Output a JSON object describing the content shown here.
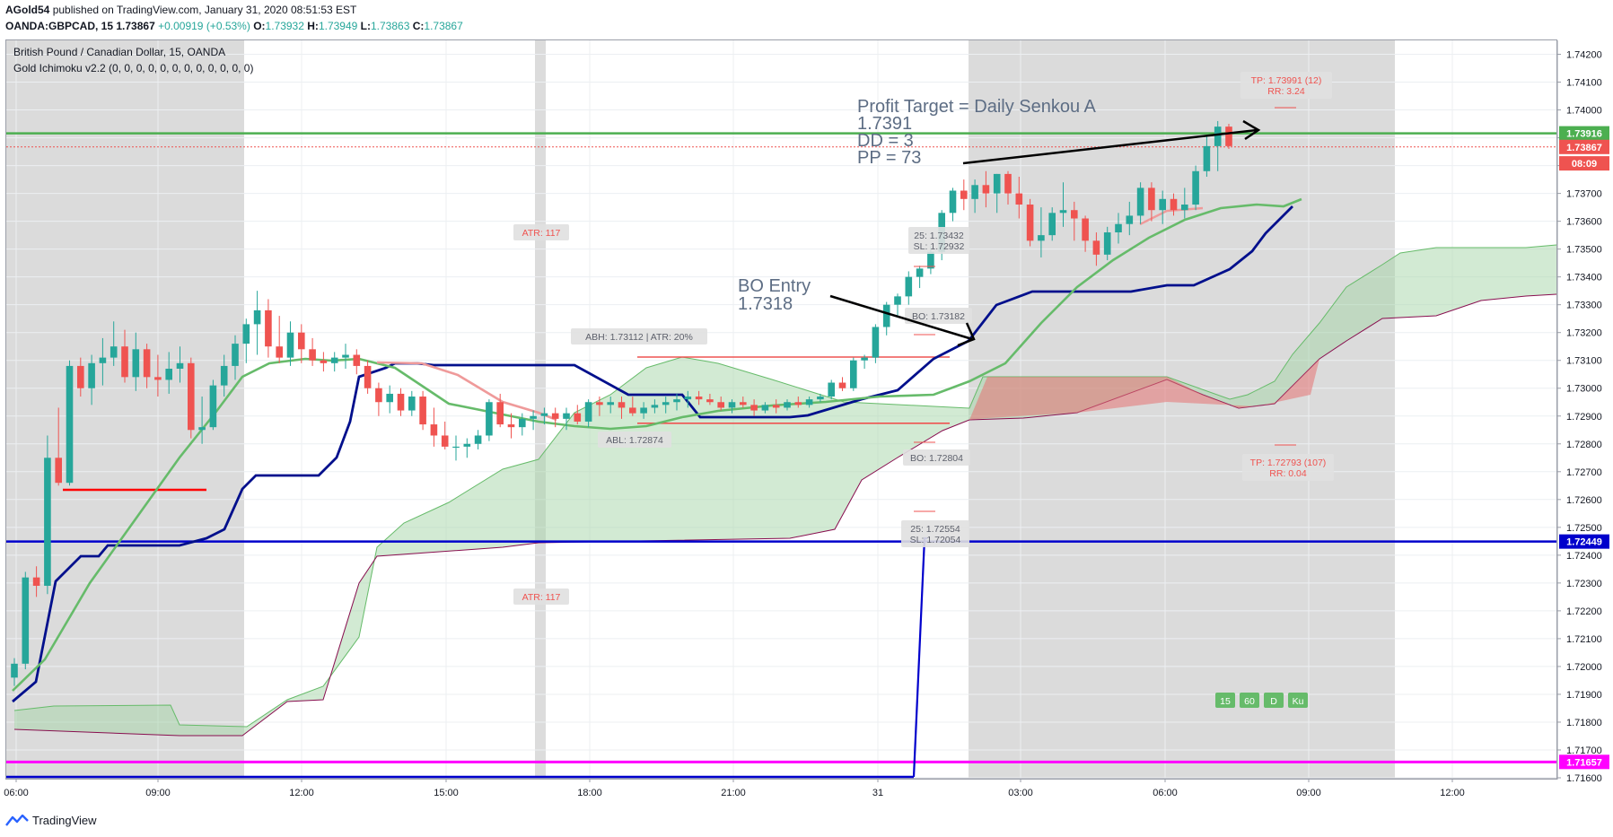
{
  "header": {
    "author": "AGold54",
    "publish_text": "published on TradingView.com, January 31, 2020 08:51:53 EST",
    "symbol": "OANDA:GBPCAD, 15",
    "price": "1.73867",
    "change": "+0.00919 (+0.53%)",
    "o_label": "O:",
    "o": "1.73932",
    "h_label": "H:",
    "h": "1.73949",
    "l_label": "L:",
    "l": "1.73863",
    "c_label": "C:",
    "c": "1.73867"
  },
  "legend": {
    "title": "British Pound / Canadian Dollar, 15, OANDA",
    "indicator": "Gold Ichimoku v2.2 (0, 0, 0, 0, 0, 0, 0, 0, 0, 0, 0, 0)"
  },
  "footer": {
    "brand": "TradingView"
  },
  "colors": {
    "up": "#26a69a",
    "down": "#ef5350",
    "kijun": "#000f8c",
    "tenkan": "#66bb6a",
    "cloud_up": "#a5d6a7",
    "cloud_down": "#e57373",
    "magenta": "#ff00ff",
    "blue_line": "#0000cc",
    "target": "#4caf50"
  },
  "chart_data": {
    "type": "candlestick",
    "ylim": [
      1.716,
      1.7425
    ],
    "y_ticks": [
      "1.74200",
      "1.74100",
      "1.74000",
      "1.73900",
      "1.73800",
      "1.73700",
      "1.73600",
      "1.73500",
      "1.73400",
      "1.73300",
      "1.73200",
      "1.73100",
      "1.73000",
      "1.72900",
      "1.72800",
      "1.72700",
      "1.72600",
      "1.72500",
      "1.72400",
      "1.72300",
      "1.72200",
      "1.72100",
      "1.72000",
      "1.71900",
      "1.71800",
      "1.71700",
      "1.71600"
    ],
    "x_ticks": [
      "06:00",
      "09:00",
      "12:00",
      "15:00",
      "18:00",
      "21:00",
      "31",
      "03:00",
      "06:00",
      "09:00",
      "12:00"
    ],
    "price_labels": [
      {
        "text": "1.73916",
        "value": 1.73916,
        "color": "#4caf50"
      },
      {
        "text": "1.73867",
        "value": 1.73867,
        "color": "#ef5350"
      },
      {
        "text": "08:09",
        "value": 1.73808,
        "color": "#ef5350"
      },
      {
        "text": "1.72449",
        "value": 1.72449,
        "color": "#0000cc"
      },
      {
        "text": "1.71657",
        "value": 1.71657,
        "color": "#ff00ff"
      }
    ],
    "candles": [
      [
        1.7196,
        1.7203,
        1.7193,
        1.7201
      ],
      [
        1.7201,
        1.7234,
        1.7199,
        1.7232
      ],
      [
        1.7232,
        1.7236,
        1.7225,
        1.7229
      ],
      [
        1.7229,
        1.7283,
        1.7226,
        1.7275
      ],
      [
        1.7275,
        1.7293,
        1.7265,
        1.7266
      ],
      [
        1.7266,
        1.731,
        1.7265,
        1.7308
      ],
      [
        1.7308,
        1.7311,
        1.7297,
        1.73
      ],
      [
        1.73,
        1.7312,
        1.7294,
        1.7309
      ],
      [
        1.7309,
        1.7318,
        1.7301,
        1.7311
      ],
      [
        1.7311,
        1.7324,
        1.7308,
        1.7315
      ],
      [
        1.7315,
        1.7321,
        1.7302,
        1.7304
      ],
      [
        1.7304,
        1.732,
        1.7299,
        1.7314
      ],
      [
        1.7314,
        1.7316,
        1.73,
        1.7304
      ],
      [
        1.7304,
        1.7312,
        1.7297,
        1.7303
      ],
      [
        1.7303,
        1.7313,
        1.7298,
        1.7307
      ],
      [
        1.7307,
        1.7315,
        1.7302,
        1.7309
      ],
      [
        1.7309,
        1.7311,
        1.7282,
        1.7285
      ],
      [
        1.7285,
        1.7297,
        1.728,
        1.7286
      ],
      [
        1.7286,
        1.7303,
        1.7285,
        1.7301
      ],
      [
        1.7301,
        1.7312,
        1.7297,
        1.7308
      ],
      [
        1.7308,
        1.7319,
        1.7303,
        1.7316
      ],
      [
        1.7316,
        1.7325,
        1.7309,
        1.7323
      ],
      [
        1.7323,
        1.7335,
        1.7312,
        1.7328
      ],
      [
        1.7328,
        1.7332,
        1.7311,
        1.7315
      ],
      [
        1.7315,
        1.7326,
        1.7309,
        1.7311
      ],
      [
        1.7311,
        1.7324,
        1.7308,
        1.732
      ],
      [
        1.732,
        1.7323,
        1.7309,
        1.7314
      ],
      [
        1.7314,
        1.7318,
        1.7308,
        1.731
      ],
      [
        1.731,
        1.7313,
        1.7306,
        1.7309
      ],
      [
        1.7309,
        1.7313,
        1.7306,
        1.7311
      ],
      [
        1.7311,
        1.7316,
        1.7307,
        1.7312
      ],
      [
        1.7312,
        1.7314,
        1.7305,
        1.7308
      ],
      [
        1.7308,
        1.731,
        1.7298,
        1.73
      ],
      [
        1.73,
        1.7302,
        1.729,
        1.7295
      ],
      [
        1.7295,
        1.7301,
        1.7291,
        1.7298
      ],
      [
        1.7298,
        1.73,
        1.729,
        1.7292
      ],
      [
        1.7292,
        1.7299,
        1.729,
        1.7297
      ],
      [
        1.7297,
        1.7299,
        1.7285,
        1.7287
      ],
      [
        1.7287,
        1.7293,
        1.7279,
        1.7283
      ],
      [
        1.7283,
        1.7288,
        1.7278,
        1.7279
      ],
      [
        1.7279,
        1.7283,
        1.7274,
        1.7279
      ],
      [
        1.7279,
        1.7282,
        1.7275,
        1.728
      ],
      [
        1.728,
        1.7285,
        1.7278,
        1.7283
      ],
      [
        1.7283,
        1.7296,
        1.7281,
        1.7295
      ],
      [
        1.7295,
        1.7298,
        1.7286,
        1.7287
      ],
      [
        1.7287,
        1.7291,
        1.7282,
        1.7286
      ],
      [
        1.7286,
        1.7291,
        1.7283,
        1.7289
      ],
      [
        1.7289,
        1.7292,
        1.7285,
        1.729
      ],
      [
        1.729,
        1.7293,
        1.7287,
        1.7291
      ],
      [
        1.7291,
        1.7293,
        1.7286,
        1.7289
      ],
      [
        1.7289,
        1.7293,
        1.7285,
        1.7291
      ],
      [
        1.7291,
        1.7294,
        1.7287,
        1.7288
      ],
      [
        1.7288,
        1.7296,
        1.7286,
        1.7295
      ],
      [
        1.7295,
        1.7297,
        1.729,
        1.7294
      ],
      [
        1.7294,
        1.7297,
        1.7291,
        1.7295
      ],
      [
        1.7295,
        1.7297,
        1.7289,
        1.7293
      ],
      [
        1.7293,
        1.7297,
        1.729,
        1.7291
      ],
      [
        1.7291,
        1.7295,
        1.7289,
        1.7293
      ],
      [
        1.7293,
        1.7296,
        1.7291,
        1.7294
      ],
      [
        1.7294,
        1.7297,
        1.7291,
        1.7295
      ],
      [
        1.7295,
        1.7298,
        1.7292,
        1.7296
      ],
      [
        1.7296,
        1.7299,
        1.7293,
        1.7297
      ],
      [
        1.7297,
        1.7299,
        1.7294,
        1.7296
      ],
      [
        1.7296,
        1.7298,
        1.7294,
        1.7295
      ],
      [
        1.7295,
        1.7297,
        1.7292,
        1.7293
      ],
      [
        1.7293,
        1.7296,
        1.7291,
        1.7295
      ],
      [
        1.7295,
        1.7297,
        1.7293,
        1.7294
      ],
      [
        1.7294,
        1.7296,
        1.729,
        1.7292
      ],
      [
        1.7292,
        1.7295,
        1.7291,
        1.7294
      ],
      [
        1.7294,
        1.7296,
        1.7291,
        1.7293
      ],
      [
        1.7293,
        1.7296,
        1.7292,
        1.7295
      ],
      [
        1.7295,
        1.7297,
        1.7293,
        1.7294
      ],
      [
        1.7294,
        1.7297,
        1.7293,
        1.7296
      ],
      [
        1.7296,
        1.7298,
        1.7295,
        1.7297
      ],
      [
        1.7297,
        1.7303,
        1.7296,
        1.7302
      ],
      [
        1.7302,
        1.7304,
        1.7299,
        1.73
      ],
      [
        1.73,
        1.7311,
        1.7299,
        1.731
      ],
      [
        1.731,
        1.7312,
        1.7307,
        1.7311
      ],
      [
        1.7311,
        1.7323,
        1.7309,
        1.7322
      ],
      [
        1.7322,
        1.7331,
        1.7319,
        1.733
      ],
      [
        1.733,
        1.7334,
        1.7326,
        1.7333
      ],
      [
        1.7333,
        1.7342,
        1.733,
        1.734
      ],
      [
        1.734,
        1.7344,
        1.7336,
        1.7343
      ],
      [
        1.7343,
        1.7351,
        1.7341,
        1.7349
      ],
      [
        1.7349,
        1.7364,
        1.7346,
        1.7363
      ],
      [
        1.7363,
        1.7372,
        1.736,
        1.7371
      ],
      [
        1.7371,
        1.7375,
        1.7364,
        1.7368
      ],
      [
        1.7368,
        1.7375,
        1.7363,
        1.7373
      ],
      [
        1.7373,
        1.7378,
        1.7365,
        1.737
      ],
      [
        1.737,
        1.7377,
        1.7363,
        1.7377
      ],
      [
        1.7377,
        1.7378,
        1.7366,
        1.737
      ],
      [
        1.737,
        1.7376,
        1.7361,
        1.7366
      ],
      [
        1.7366,
        1.7368,
        1.7351,
        1.7353
      ],
      [
        1.7353,
        1.7365,
        1.7347,
        1.7355
      ],
      [
        1.7355,
        1.7365,
        1.7353,
        1.7363
      ],
      [
        1.7363,
        1.7374,
        1.7358,
        1.7364
      ],
      [
        1.7364,
        1.7367,
        1.7353,
        1.7361
      ],
      [
        1.7361,
        1.7362,
        1.7349,
        1.7353
      ],
      [
        1.7353,
        1.7356,
        1.7344,
        1.7348
      ],
      [
        1.7348,
        1.7358,
        1.7346,
        1.7356
      ],
      [
        1.7356,
        1.7363,
        1.7352,
        1.7359
      ],
      [
        1.7359,
        1.7367,
        1.7355,
        1.7362
      ],
      [
        1.7362,
        1.7374,
        1.7359,
        1.7372
      ],
      [
        1.7372,
        1.7374,
        1.736,
        1.7364
      ],
      [
        1.7364,
        1.7371,
        1.7359,
        1.7368
      ],
      [
        1.7368,
        1.737,
        1.7362,
        1.7364
      ],
      [
        1.7364,
        1.7372,
        1.7361,
        1.7366
      ],
      [
        1.7366,
        1.738,
        1.7364,
        1.7378
      ],
      [
        1.7378,
        1.7391,
        1.7376,
        1.7387
      ],
      [
        1.7387,
        1.7396,
        1.7378,
        1.7394
      ],
      [
        1.7394,
        1.7395,
        1.7386,
        1.7387
      ]
    ],
    "tenkan": [
      1.7189,
      1.7194,
      1.7203,
      1.7214,
      1.7226,
      1.7238,
      1.725,
      1.726,
      1.727,
      1.728,
      1.7289,
      1.7296,
      1.7302,
      1.7307,
      1.7309,
      1.7309,
      1.7309,
      1.7309,
      1.7309,
      1.7308,
      1.7306,
      1.7303,
      1.7299,
      1.7295,
      1.7291,
      1.7288,
      1.7286,
      1.7285,
      1.7286,
      1.7287,
      1.7288,
      1.729,
      1.7291,
      1.7292,
      1.7292,
      1.7292,
      1.7293,
      1.7294,
      1.7295,
      1.7295,
      1.7296,
      1.7296,
      1.7297,
      1.7298,
      1.73,
      1.7303,
      1.7307,
      1.7312,
      1.7318,
      1.7325,
      1.7333,
      1.734,
      1.7347,
      1.7353,
      1.7357,
      1.7361,
      1.7363,
      1.7364,
      1.7366,
      1.7367
    ],
    "annotations": {
      "profit_target": [
        "Profit Target = Daily Senkou A",
        "1.7391",
        "DD = 3",
        "PP = 73"
      ],
      "bo_entry": [
        "BO Entry",
        "1.7318"
      ],
      "atr_top": "ATR: 117",
      "atr_bottom": "ATR: 117",
      "abh": "ABH: 1.73112  |  ATR: 20%",
      "abl": "ABL: 1.72874",
      "bo_upper": "BO: 1.73182",
      "bo_lower": "BO: 1.72804",
      "sl_upper": [
        "25: 1.73432",
        "SL: 1.72932"
      ],
      "sl_lower": [
        "25: 1.72554",
        "SL: 1.72054"
      ],
      "tp_upper": [
        "TP: 1.73991 (12)",
        "RR: 3.24"
      ],
      "tp_lower": [
        "TP: 1.72793 (107)",
        "RR: 0.04"
      ],
      "timeframe_badges": [
        "15",
        "60",
        "D",
        "Ku"
      ]
    }
  }
}
